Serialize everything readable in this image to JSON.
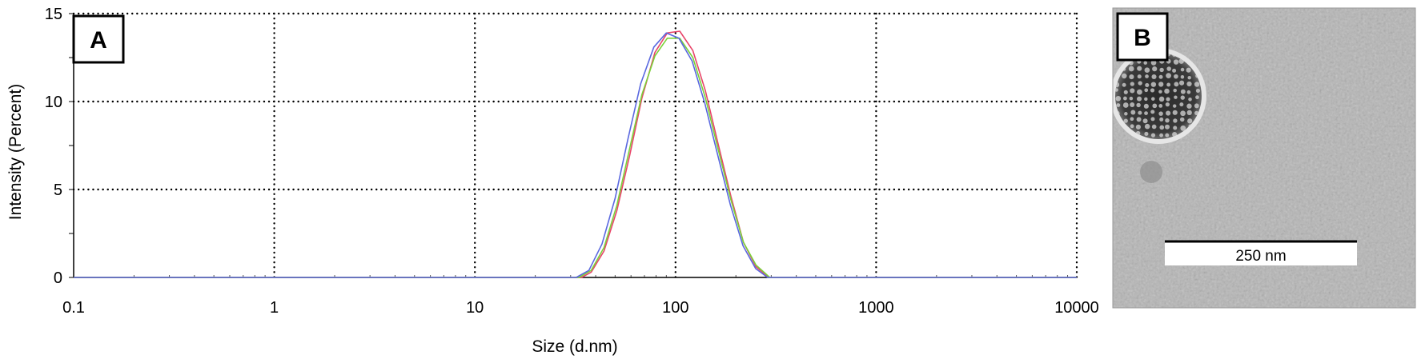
{
  "chart_data": {
    "type": "line",
    "panel_label": "A",
    "xlabel": "Size (d.nm)",
    "ylabel": "Intensity (Percent)",
    "x_scale": "log",
    "xlim": [
      0.1,
      10000
    ],
    "ylim": [
      0,
      15
    ],
    "x_ticks": [
      0.1,
      1,
      10,
      100,
      1000,
      10000
    ],
    "x_tick_labels": [
      "0.1",
      "1",
      "10",
      "100",
      "1000",
      "10000"
    ],
    "y_ticks": [
      0,
      5,
      10,
      15
    ],
    "y_tick_labels": [
      "0",
      "5",
      "10",
      "15"
    ],
    "grid": true,
    "colors": {
      "red": "#e8466a",
      "green": "#7ad23a",
      "blue": "#5a68e0"
    },
    "series": [
      {
        "color": "#e8466a",
        "x": [
          0.1,
          34,
          38,
          44,
          51,
          59,
          68,
          79,
          91,
          105,
          122,
          141,
          163,
          189,
          218,
          252,
          292,
          10000
        ],
        "y": [
          0,
          0,
          0.3,
          1.5,
          3.8,
          6.9,
          10.2,
          12.8,
          13.9,
          14.0,
          12.9,
          10.6,
          7.6,
          4.6,
          2.0,
          0.6,
          0,
          0
        ]
      },
      {
        "color": "#7ad23a",
        "x": [
          0.1,
          33,
          38,
          44,
          51,
          59,
          68,
          79,
          91,
          105,
          122,
          141,
          163,
          189,
          218,
          252,
          295,
          10000
        ],
        "y": [
          0,
          0,
          0.4,
          1.7,
          4.1,
          7.3,
          10.4,
          12.6,
          13.6,
          13.6,
          12.5,
          10.2,
          7.3,
          4.4,
          2.0,
          0.7,
          0,
          0
        ]
      },
      {
        "color": "#5a68e0",
        "x": [
          0.1,
          32,
          37,
          43,
          50,
          58,
          67,
          78,
          90,
          104,
          121,
          140,
          162,
          188,
          217,
          251,
          288,
          10000
        ],
        "y": [
          0,
          0,
          0.4,
          1.9,
          4.5,
          7.9,
          11.0,
          13.1,
          13.9,
          13.6,
          12.3,
          9.9,
          7.0,
          4.1,
          1.8,
          0.5,
          0,
          0
        ]
      }
    ]
  },
  "image_panel": {
    "label": "B",
    "scale_bar": "250 nm"
  }
}
